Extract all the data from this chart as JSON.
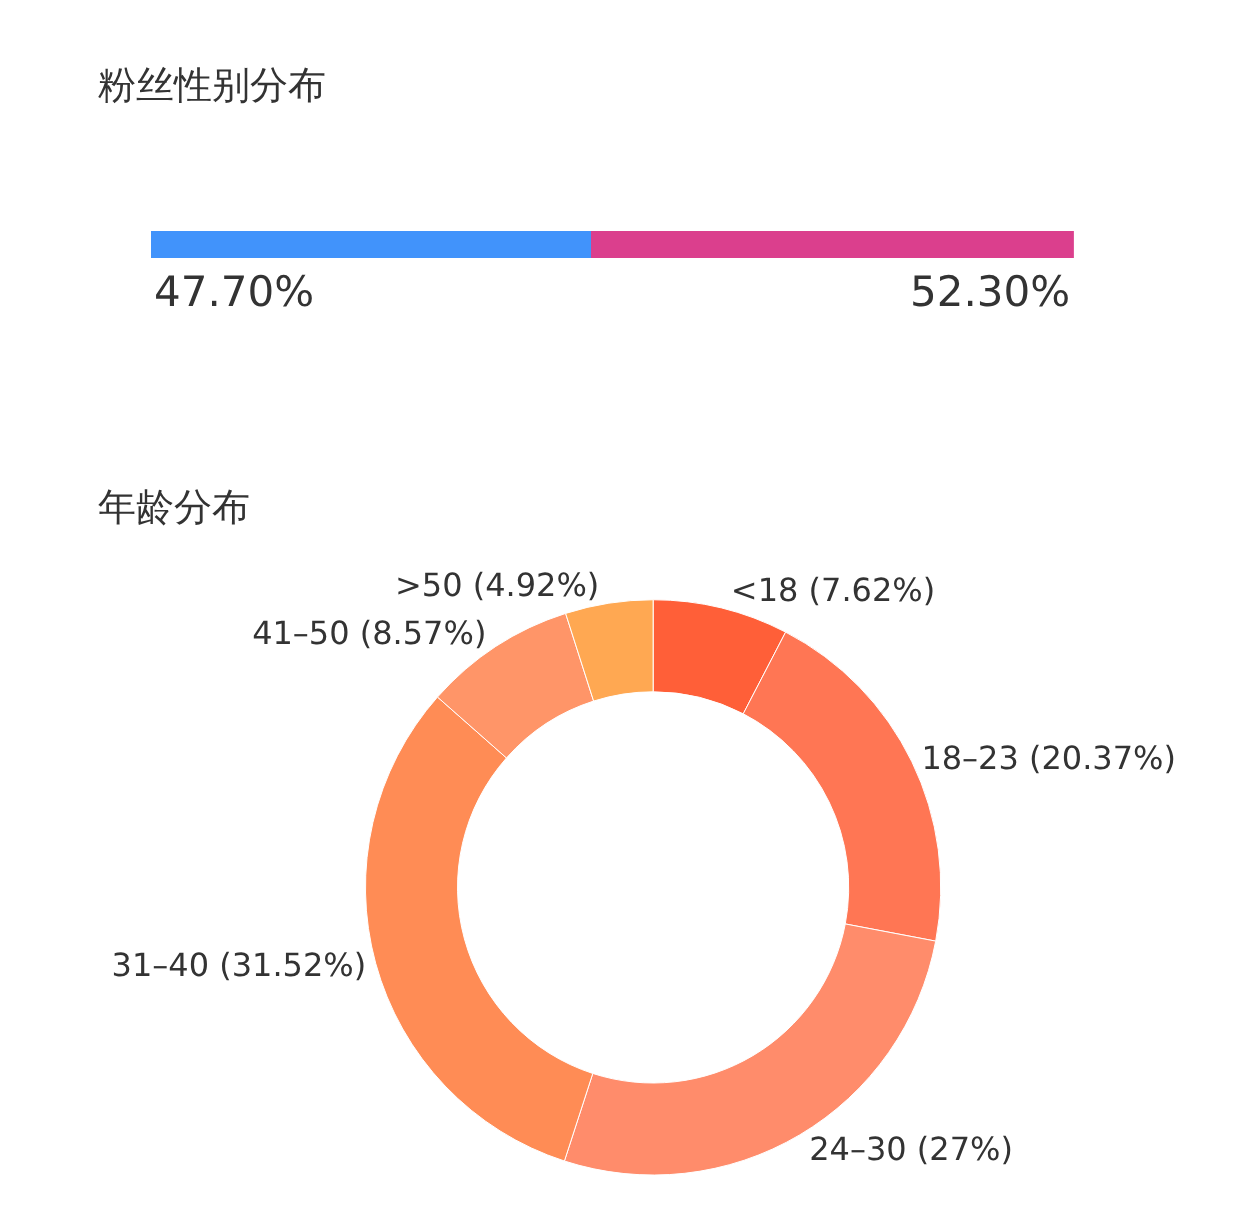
{
  "chart_data": [
    {
      "type": "bar",
      "title": "粉丝性别分布",
      "orientation": "horizontal",
      "stacked": true,
      "categories": [
        null
      ],
      "series": [
        {
          "color": "#4193fb",
          "values": [
            47.7
          ],
          "value_labels": [
            "47.70%"
          ]
        },
        {
          "color": "#db3f8d",
          "values": [
            52.3
          ],
          "value_labels": [
            "52.30%"
          ]
        }
      ]
    },
    {
      "type": "donut",
      "title": "年龄分布",
      "categories": [
        "<18 (7.62%)",
        "18–23 (20.37%)",
        "24–30 (27%)",
        "31–40 (31.52%)",
        "41–50 (8.57%)",
        ">50 (4.92%)"
      ],
      "values": [
        7.62,
        20.37,
        27,
        31.52,
        8.57,
        4.92
      ],
      "colors": [
        "#ff5f38",
        "#ff7654",
        "#ff8c6b",
        "#ff8c55",
        "#ff9568",
        "#ffa852"
      ]
    }
  ]
}
